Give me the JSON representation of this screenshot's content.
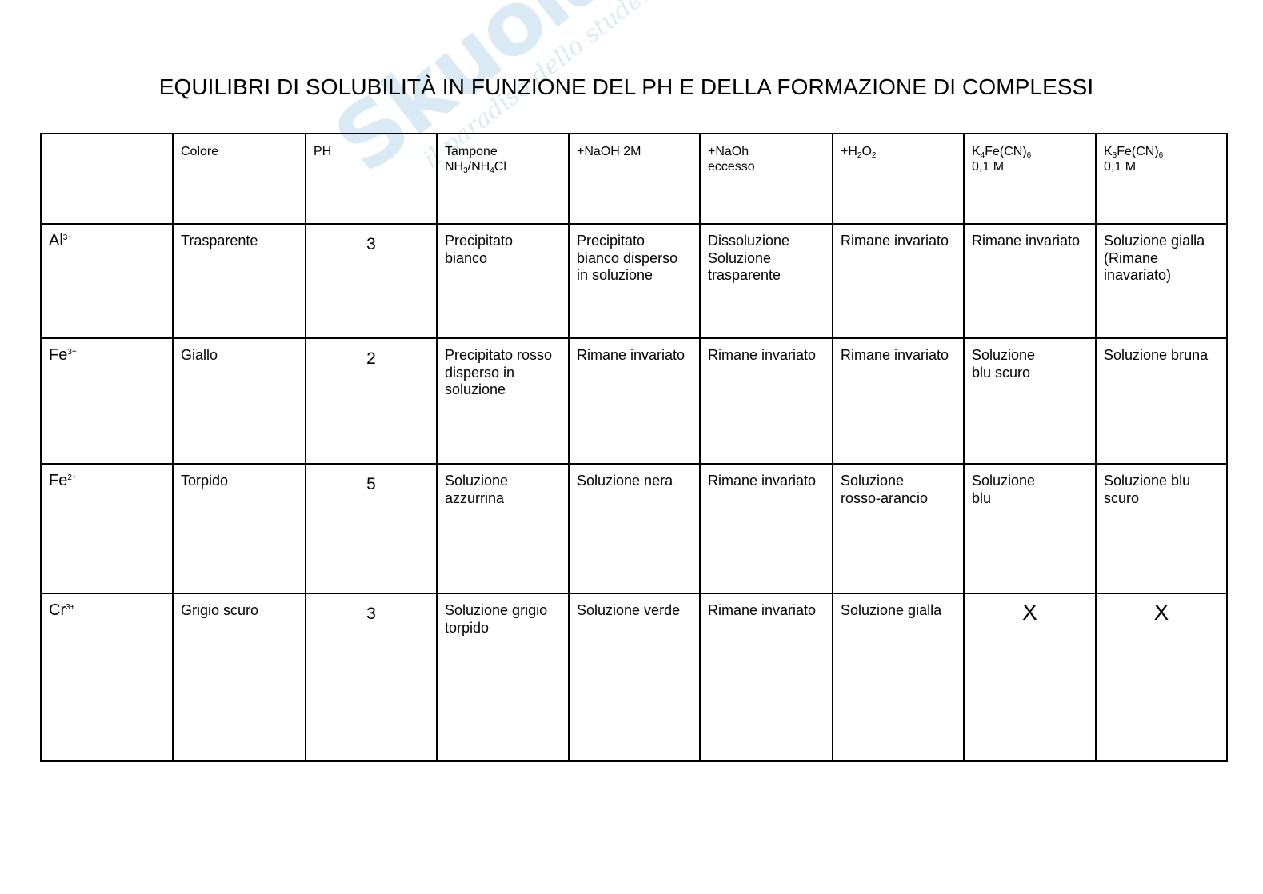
{
  "document": {
    "title": "EQUILIBRI DI SOLUBILITÀ IN FUNZIONE DEL PH E DELLA FORMAZIONE DI COMPLESSI",
    "watermark": {
      "logo": "Skuola.net",
      "tagline": "il paradiso dello studente",
      "color": "#1a7fc4"
    }
  },
  "table": {
    "headers": [
      [],
      [
        {
          "t": "Colore"
        }
      ],
      [
        {
          "t": "PH"
        }
      ],
      [
        {
          "t": "Tampone\nNH"
        },
        {
          "sub": "3"
        },
        {
          "t": "/NH"
        },
        {
          "sub": "4"
        },
        {
          "t": "Cl"
        }
      ],
      [
        {
          "t": "+NaOH 2M"
        }
      ],
      [
        {
          "t": "+NaOh\neccesso"
        }
      ],
      [
        {
          "t": "+H"
        },
        {
          "sub": "2"
        },
        {
          "t": "O"
        },
        {
          "sub": "2"
        }
      ],
      [
        {
          "t": "K"
        },
        {
          "sub": "4"
        },
        {
          "t": "Fe(CN)"
        },
        {
          "sub": "6"
        },
        {
          "t": "\n0,1 M"
        }
      ],
      [
        {
          "t": "K"
        },
        {
          "sub": "3"
        },
        {
          "t": "Fe(CN)"
        },
        {
          "sub": "6"
        },
        {
          "t": "\n0,1 M"
        }
      ]
    ],
    "rows": [
      {
        "ion": "Al",
        "charge": "3+",
        "colore": "Trasparente",
        "ph": "3",
        "cells": [
          "Precipitato\nbianco",
          "Precipitato\nbianco disperso\nin soluzione",
          "Dissoluzione\nSoluzione\ntrasparente",
          "Rimane invariato",
          "Rimane invariato",
          "Soluzione gialla\n(Rimane\ninavariato)"
        ]
      },
      {
        "ion": "Fe",
        "charge": "3+",
        "colore": "Giallo",
        "ph": "2",
        "cells": [
          "Precipitato rosso\ndisperso in\nsoluzione",
          "Rimane invariato",
          "Rimane invariato",
          "Rimane invariato",
          "Soluzione\nblu scuro",
          "Soluzione bruna"
        ]
      },
      {
        "ion": "Fe",
        "charge": "2+",
        "colore": "Torpido",
        "ph": "5",
        "cells": [
          "Soluzione\nazzurrina",
          "Soluzione nera",
          "Rimane invariato",
          "Soluzione\nrosso-arancio",
          "Soluzione\nblu",
          "Soluzione blu\nscuro"
        ]
      },
      {
        "ion": "Cr",
        "charge": "3+",
        "colore": "Grigio scuro",
        "ph": "3",
        "cells": [
          "Soluzione grigio\ntorpido",
          "Soluzione verde",
          "Rimane invariato",
          "Soluzione gialla",
          "X",
          "X"
        ]
      }
    ]
  }
}
